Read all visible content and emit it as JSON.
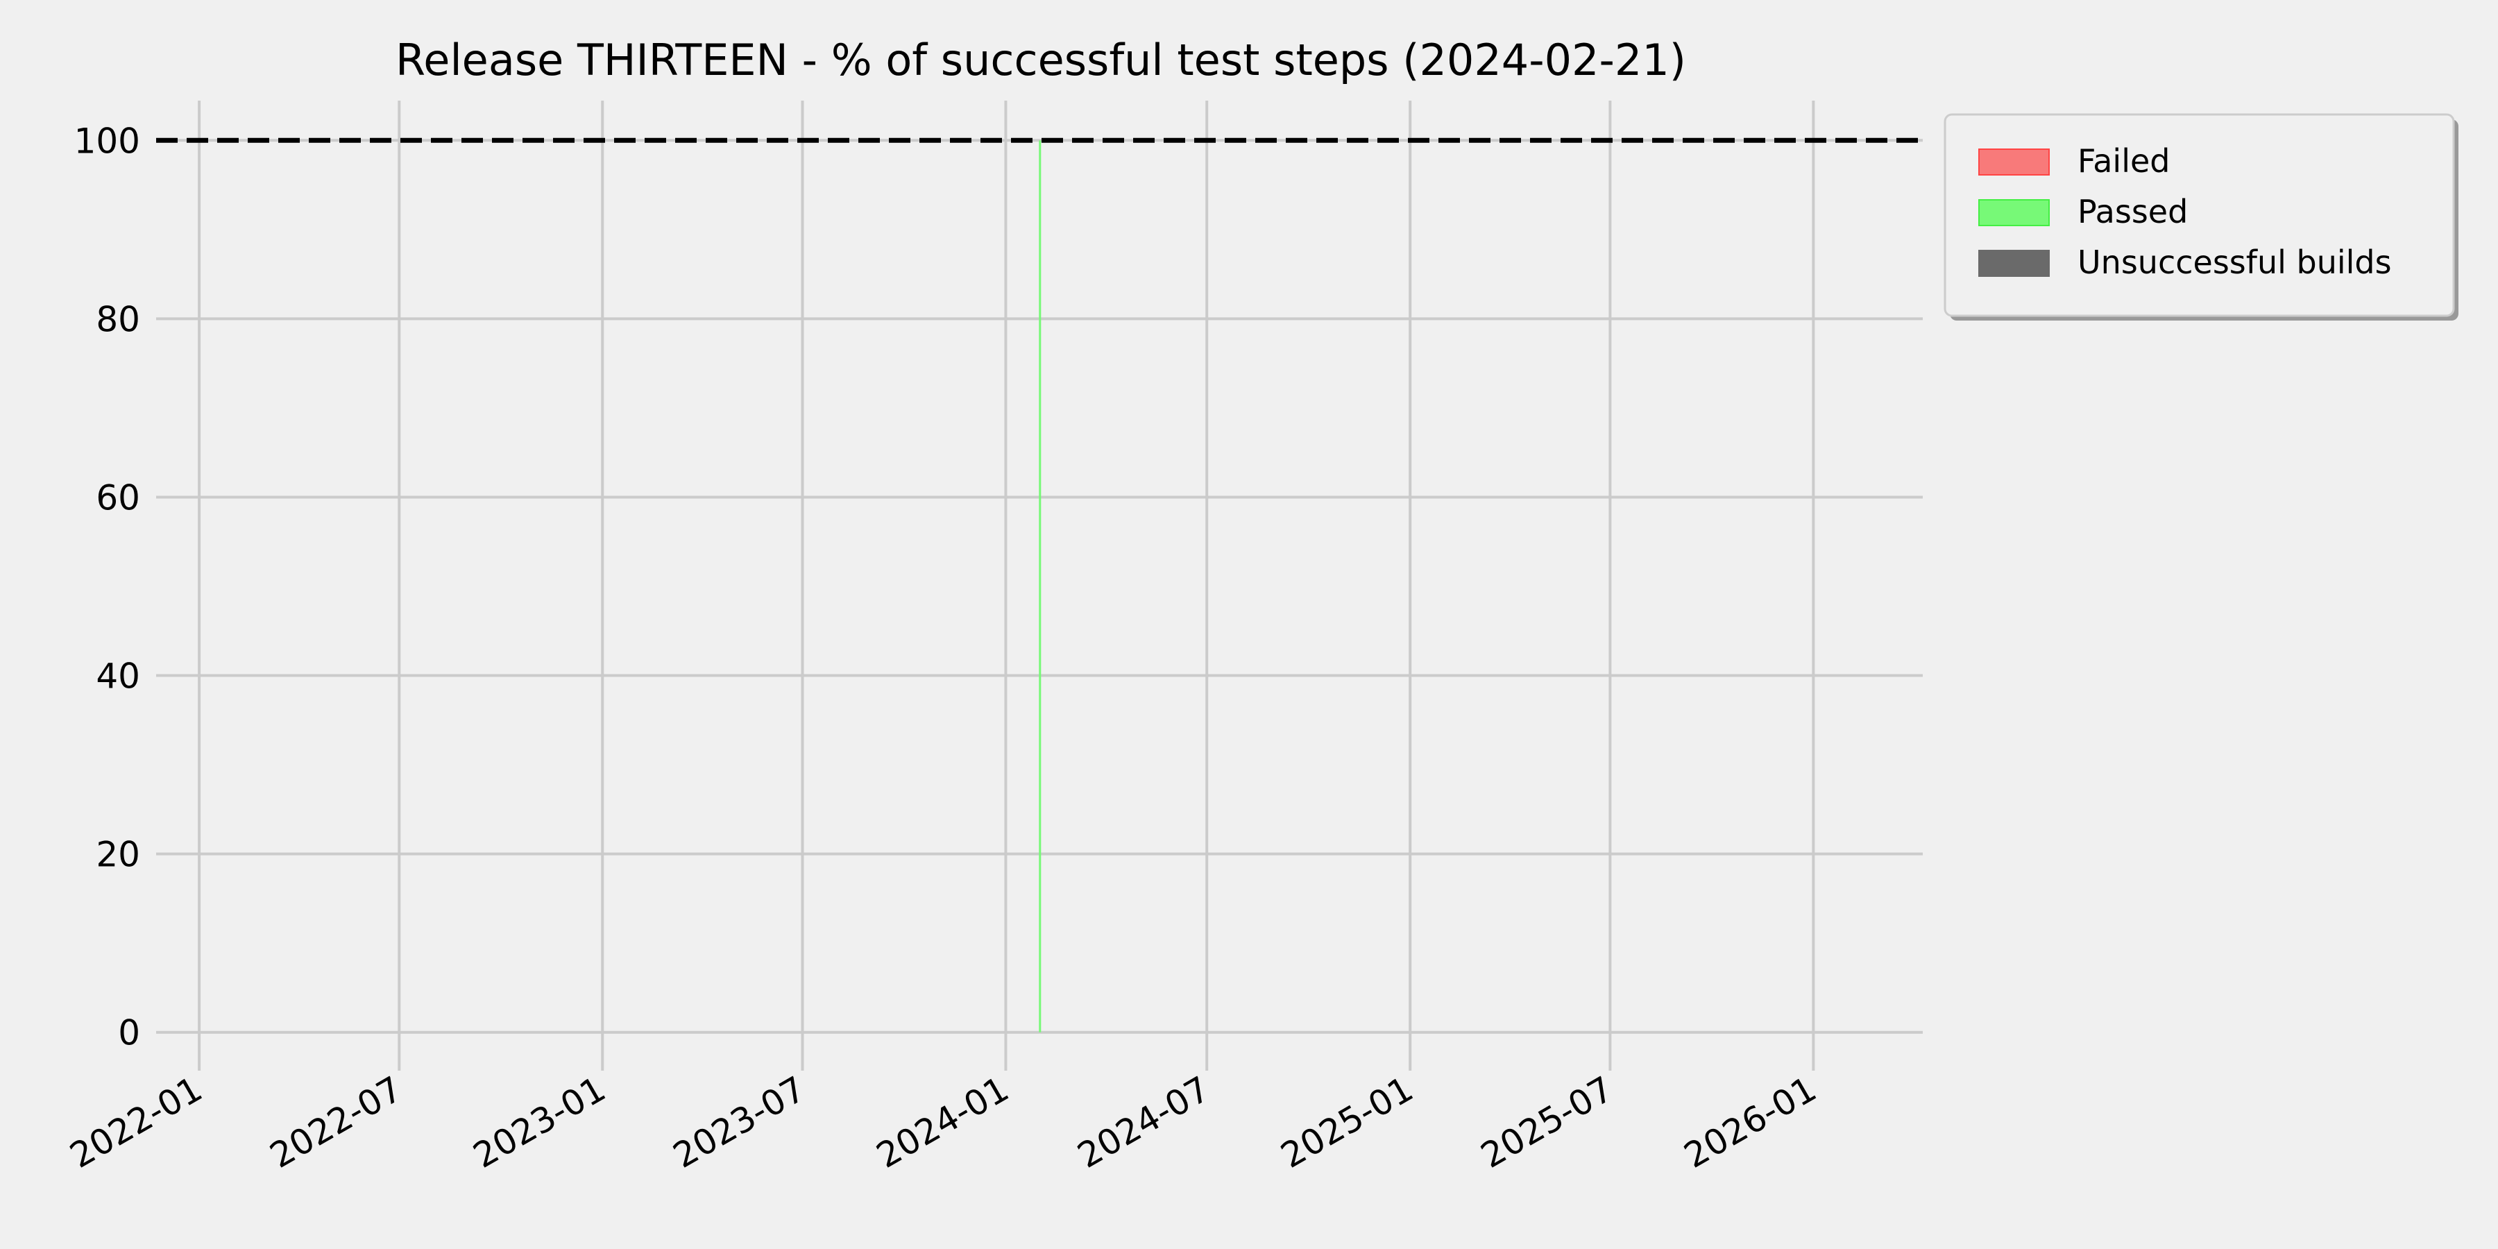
{
  "chart_data": {
    "type": "bar",
    "title": "Release THIRTEEN - % of successful test steps (2024-02-21)",
    "xlabel": "",
    "ylabel": "",
    "x_axis_type": "date",
    "xlim": [
      "2021-11-23",
      "2026-04-10"
    ],
    "ylim": [
      -5,
      105
    ],
    "x_ticks": [
      "2022-01",
      "2022-07",
      "2023-01",
      "2023-07",
      "2024-01",
      "2024-07",
      "2025-01",
      "2025-07",
      "2026-01"
    ],
    "y_ticks": [
      0,
      20,
      40,
      60,
      80,
      100
    ],
    "grid": true,
    "reference_line": {
      "y": 100,
      "style": "dashed",
      "color": "#000000"
    },
    "legend_position": "outside-top-right",
    "series": [
      {
        "name": "Failed",
        "color": "#f87a7a",
        "edge_color": "#ff4444",
        "points": []
      },
      {
        "name": "Passed",
        "color": "#77f977",
        "edge_color": "#44ee44",
        "points": [
          {
            "x": "2024-02-01",
            "y": 100
          }
        ]
      },
      {
        "name": "Unsuccessful builds",
        "color": "#6a6a6a",
        "edge_color": "#6a6a6a",
        "points": []
      }
    ],
    "background_color": "#f0f0f0",
    "grid_color": "#cbcbcb"
  }
}
